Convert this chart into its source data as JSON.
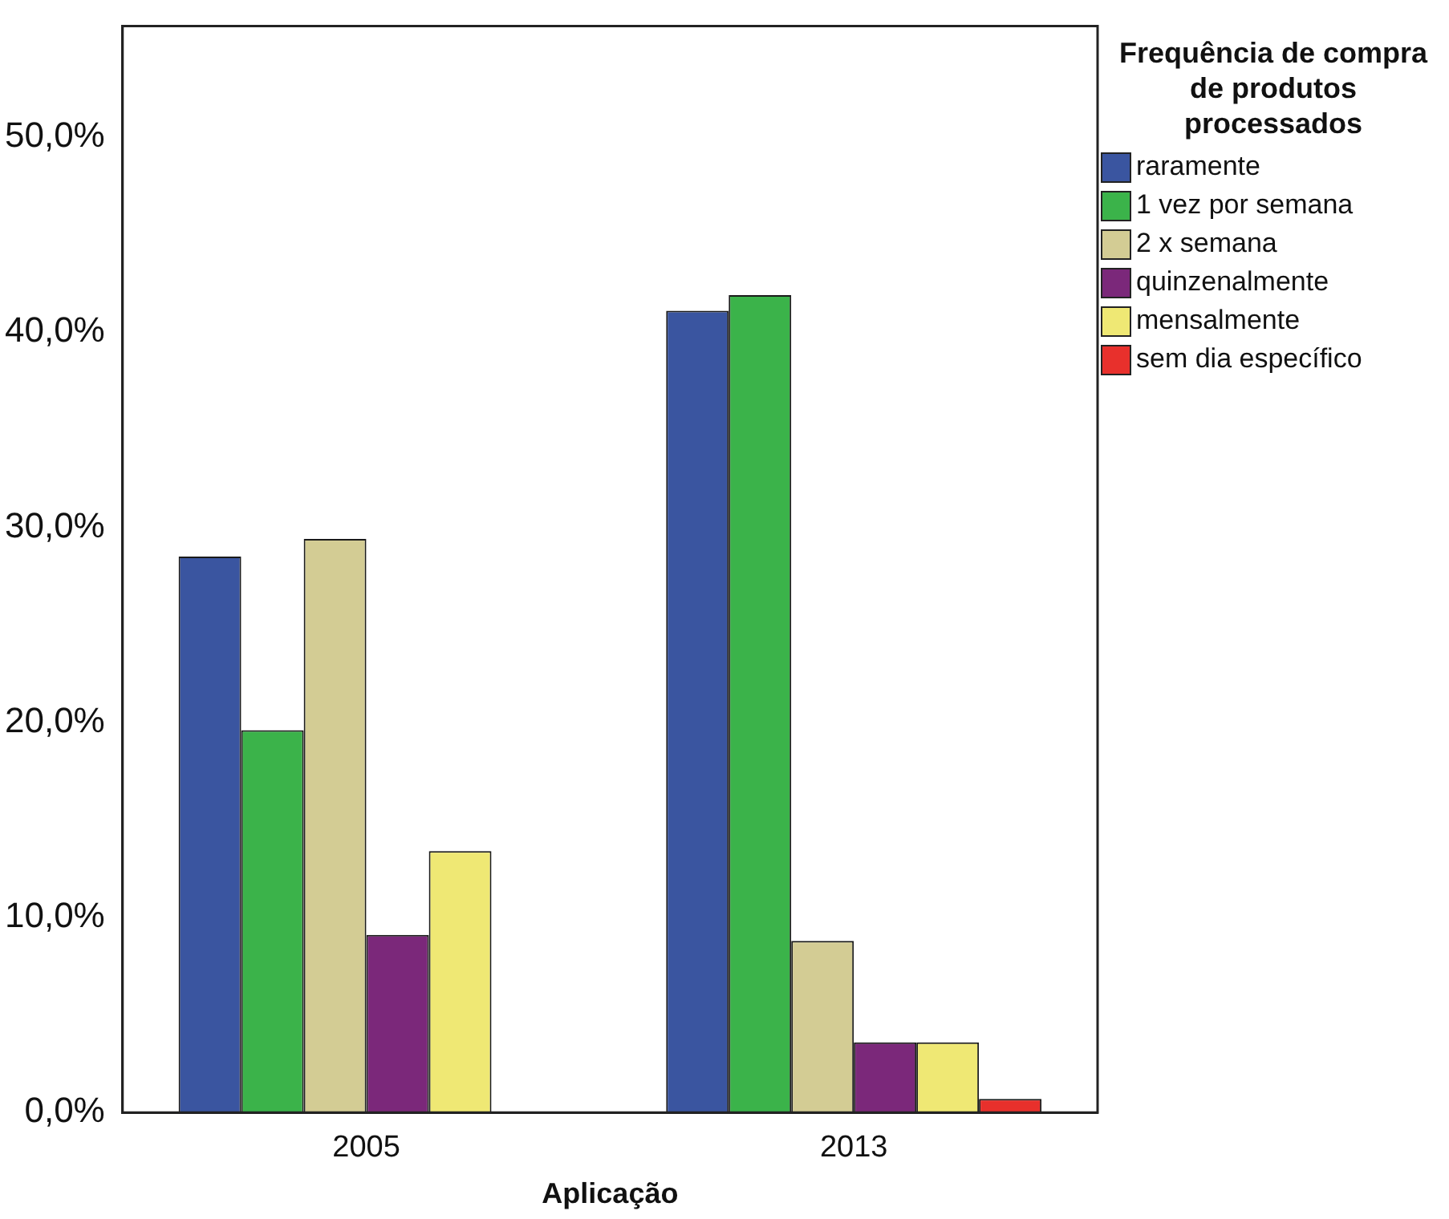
{
  "chart_data": {
    "type": "bar",
    "xlabel": "Aplicação",
    "legend_title": "Frequência de compra de produtos processados",
    "legend": "right",
    "grid": false,
    "categories": [
      "2005",
      "2013"
    ],
    "series": [
      {
        "name": "raramente",
        "color": "#3a55a0",
        "values": [
          28.5,
          41.1
        ]
      },
      {
        "name": "1 vez por semana",
        "color": "#3bb34a",
        "values": [
          19.6,
          41.9
        ]
      },
      {
        "name": "2 x semana",
        "color": "#d3cc94",
        "values": [
          29.4,
          8.8
        ]
      },
      {
        "name": "quinzenalmente",
        "color": "#7b287a",
        "values": [
          9.1,
          3.6
        ]
      },
      {
        "name": "mensalmente",
        "color": "#efe874",
        "values": [
          13.4,
          3.6
        ]
      },
      {
        "name": "sem dia específico",
        "color": "#e8302c",
        "values": [
          null,
          0.7
        ]
      }
    ],
    "ylim": [
      0,
      55.7
    ],
    "yticks": [
      {
        "value": 0,
        "label": "0,0%"
      },
      {
        "value": 10,
        "label": "10,0%"
      },
      {
        "value": 20,
        "label": "20,0%"
      },
      {
        "value": 30,
        "label": "30,0%"
      },
      {
        "value": 40,
        "label": "40,0%"
      },
      {
        "value": 50,
        "label": "50,0%"
      }
    ]
  }
}
